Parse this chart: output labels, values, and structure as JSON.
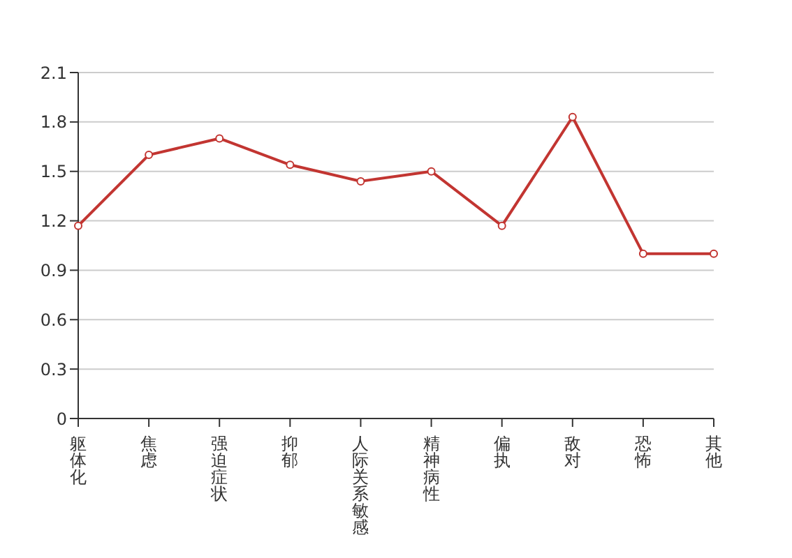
{
  "chart_data": {
    "type": "line",
    "categories": [
      "躯体化",
      "焦虑",
      "强迫症状",
      "抑郁",
      "人际关系敏感",
      "精神病性",
      "偏执",
      "敌对",
      "恐怖",
      "其他"
    ],
    "series": [
      {
        "color": "#c23531",
        "values": [
          1.17,
          1.6,
          1.7,
          1.54,
          1.44,
          1.5,
          1.17,
          1.83,
          1.0,
          1.0
        ]
      }
    ],
    "ylim": [
      0,
      2.1
    ],
    "yticks": [
      0,
      0.3,
      0.6,
      0.9,
      1.2,
      1.5,
      1.8,
      2.1
    ],
    "grid": "y",
    "marker": "circle",
    "line_style": "solid"
  }
}
